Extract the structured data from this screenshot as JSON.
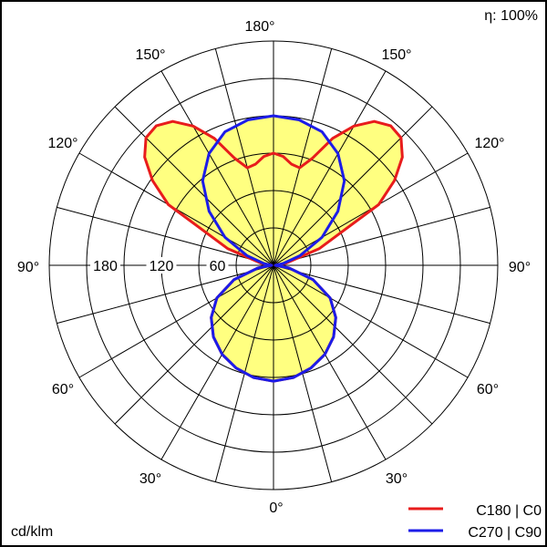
{
  "chart_data": {
    "type": "polar",
    "efficiency_label": "η: 100%",
    "unit_label": "cd/klm",
    "radial_max": 240,
    "radial_ticks": [
      60,
      120,
      180
    ],
    "radial_tick_labels": [
      "60",
      "120",
      "180"
    ],
    "ring_values": [
      40,
      80,
      120,
      160,
      200,
      240
    ],
    "spoke_step_deg": 15,
    "angle_labels": {
      "top": "180°",
      "upper_left": "150°",
      "upper_right": "150°",
      "mid_upper_left": "120°",
      "mid_upper_right": "120°",
      "left": "90°",
      "right": "90°",
      "mid_lower_left": "60°",
      "mid_lower_right": "60°",
      "lower_left": "30°",
      "lower_right": "30°",
      "bottom": "0°"
    },
    "fill_color": "#ffff80",
    "series": [
      {
        "name": "C180 | C0",
        "color": "#e81c1c",
        "angles_deg": [
          0,
          10,
          20,
          30,
          40,
          50,
          60,
          70,
          80,
          90,
          100,
          110,
          120,
          125,
          130,
          135,
          140,
          145,
          150,
          155,
          160,
          165,
          170,
          175,
          180
        ],
        "values": [
          124,
          122,
          117,
          110,
          100,
          87,
          70,
          45,
          17,
          2,
          14,
          52,
          130,
          158,
          180,
          193,
          195,
          188,
          172,
          150,
          122,
          108,
          110,
          117,
          120
        ]
      },
      {
        "name": "C270 | C90",
        "color": "#1c1ce8",
        "angles_deg": [
          0,
          10,
          20,
          30,
          40,
          50,
          60,
          70,
          80,
          90,
          100,
          110,
          120,
          130,
          140,
          150,
          160,
          170,
          180
        ],
        "values": [
          124,
          122,
          117,
          110,
          100,
          87,
          70,
          45,
          17,
          2,
          10,
          30,
          60,
          90,
          118,
          138,
          152,
          158,
          160
        ]
      }
    ]
  }
}
